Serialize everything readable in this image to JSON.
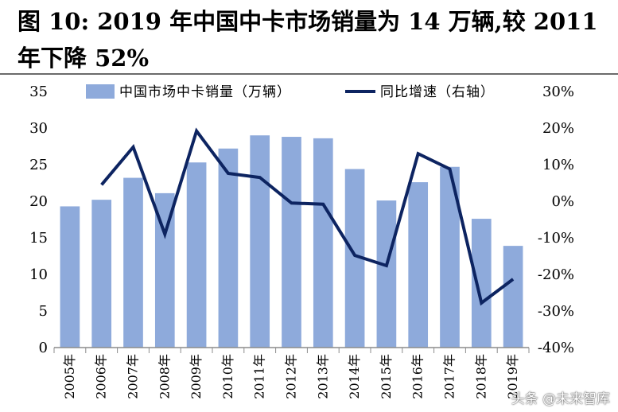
{
  "title": "图  10: 2019 年中国中卡市场销量为 14 万辆,较 2011 年下降 52%",
  "watermark": "头条 @未来智库",
  "chart_data": {
    "type": "bar+line",
    "categories": [
      "2005年",
      "2006年",
      "2007年",
      "2008年",
      "2009年",
      "2010年",
      "2011年",
      "2012年",
      "2013年",
      "2014年",
      "2015年",
      "2016年",
      "2017年",
      "2018年",
      "2019年"
    ],
    "series": [
      {
        "name": "中国市场中卡销量（万辆）",
        "type": "bar",
        "axis": "left",
        "color": "#8eaadb",
        "values": [
          19.3,
          20.2,
          23.2,
          21.1,
          25.3,
          27.2,
          29.0,
          28.8,
          28.6,
          24.4,
          20.1,
          22.6,
          24.7,
          17.6,
          13.9
        ]
      },
      {
        "name": "同比增速（右轴）",
        "type": "line",
        "axis": "right",
        "color": "#0d2461",
        "values": [
          null,
          4.5,
          14.8,
          -9.0,
          19.2,
          7.6,
          6.5,
          -0.5,
          -0.8,
          -14.8,
          -17.6,
          13.0,
          8.8,
          -27.8,
          -21.3
        ]
      }
    ],
    "y_left": {
      "min": 0,
      "max": 35,
      "ticks": [
        "0",
        "5",
        "10",
        "15",
        "20",
        "25",
        "30",
        "35"
      ]
    },
    "y_right": {
      "min": -40,
      "max": 30,
      "ticks": [
        "-40%",
        "-30%",
        "-20%",
        "-10%",
        "0%",
        "10%",
        "20%",
        "30%"
      ]
    },
    "grid": false,
    "legend_position": "top"
  }
}
